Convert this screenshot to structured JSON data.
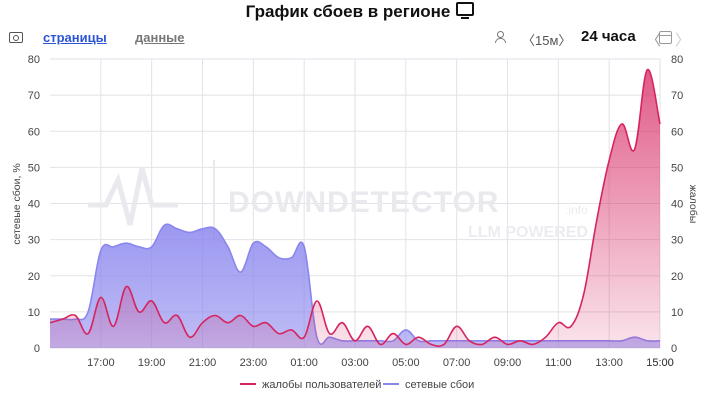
{
  "header": {
    "title": "График сбоев в регионе"
  },
  "toolbar": {
    "tab_pages": "страницы",
    "tab_data": "данные",
    "interval": "〈15м〉",
    "range": "24 часа",
    "range_prev": "〈",
    "range_next": "〉",
    "icons": [
      "camera-icon",
      "person-icon",
      "calendar-icon",
      "tv-icon"
    ]
  },
  "watermark": {
    "main": "DOWNDETECTOR",
    "sub": "LLM POWERED",
    "suffix": ".info"
  },
  "colors": {
    "complaints": "#d6245f",
    "outages": "#8a86ee",
    "grid": "#e2e2e8"
  },
  "chart_data": {
    "type": "area",
    "x": [
      "15:00",
      "15:30",
      "16:00",
      "16:30",
      "17:00",
      "17:30",
      "18:00",
      "18:30",
      "19:00",
      "19:30",
      "20:00",
      "20:30",
      "21:00",
      "21:30",
      "22:00",
      "22:30",
      "23:00",
      "23:30",
      "00:00",
      "00:30",
      "01:00",
      "01:30",
      "02:00",
      "02:30",
      "03:00",
      "03:30",
      "04:00",
      "04:30",
      "05:00",
      "05:30",
      "06:00",
      "06:30",
      "07:00",
      "07:30",
      "08:00",
      "08:30",
      "09:00",
      "09:30",
      "10:00",
      "10:30",
      "11:00",
      "11:30",
      "12:00",
      "12:30",
      "13:00",
      "13:30",
      "14:00",
      "14:30",
      "15:00"
    ],
    "xticks": [
      "15:00",
      "17:00",
      "19:00",
      "21:00",
      "23:00",
      "01:00",
      "03:00",
      "05:00",
      "07:00",
      "09:00",
      "11:00",
      "13:00",
      "15:00"
    ],
    "series": [
      {
        "name": "жалобы пользователей",
        "axis": "right",
        "values": [
          7,
          8,
          9,
          4,
          14,
          6,
          17,
          10,
          13,
          7,
          9,
          3,
          7,
          9,
          7,
          9,
          6,
          7,
          4,
          5,
          3,
          13,
          4,
          7,
          2,
          6,
          1,
          4,
          1,
          3,
          1,
          1,
          6,
          2,
          1,
          3,
          1,
          2,
          1,
          3,
          7,
          6,
          15,
          35,
          52,
          62,
          55,
          77,
          62
        ]
      },
      {
        "name": "сетевые сбои",
        "axis": "left",
        "values": [
          8,
          8,
          8,
          10,
          27,
          28,
          29,
          28,
          28,
          34,
          33,
          32,
          33,
          33,
          28,
          21,
          29,
          28,
          25,
          25,
          28,
          3,
          3,
          2,
          2,
          2,
          2,
          2,
          5,
          2,
          2,
          2,
          2,
          2,
          2,
          2,
          2,
          2,
          2,
          2,
          2,
          2,
          2,
          2,
          2,
          2,
          3,
          2,
          2
        ]
      }
    ],
    "ylabel_left": "сетевые сбои, %",
    "ylabel_right": "жалобы",
    "ylim": [
      0,
      80
    ],
    "yticks": [
      0,
      10,
      20,
      30,
      40,
      50,
      60,
      70,
      80
    ],
    "grid": true,
    "legend_position": "bottom"
  }
}
